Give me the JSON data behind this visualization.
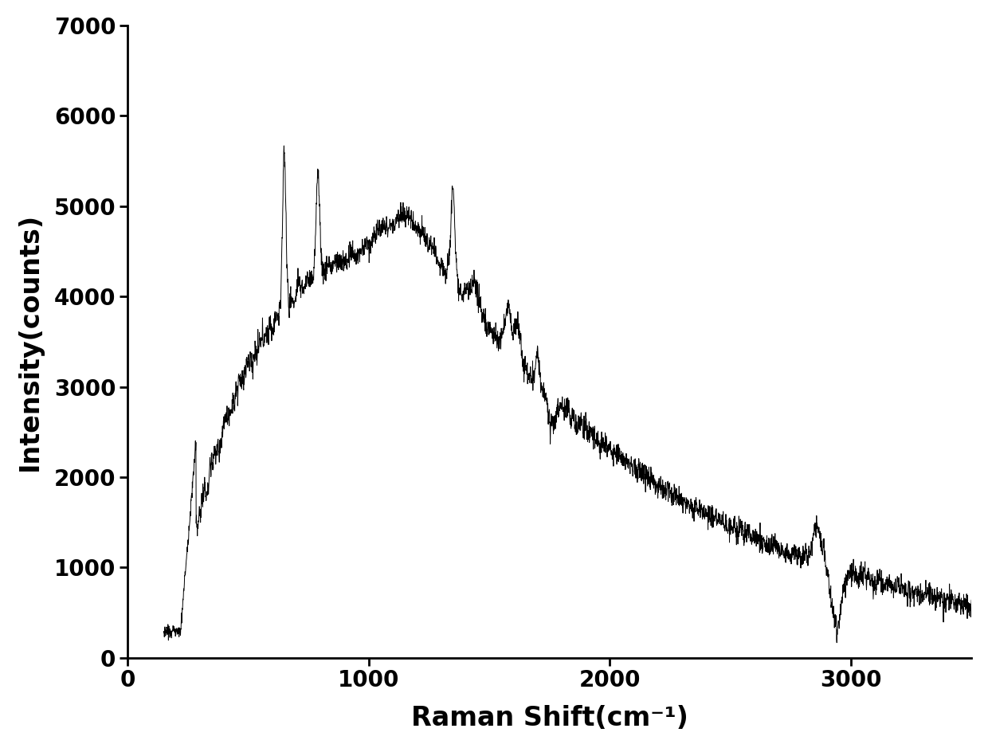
{
  "xlabel": "Raman Shift(cm⁻¹)",
  "ylabel": "Intensity(counts)",
  "xlim": [
    0,
    3500
  ],
  "ylim": [
    0,
    7000
  ],
  "xticks": [
    0,
    1000,
    2000,
    3000
  ],
  "yticks": [
    0,
    1000,
    2000,
    3000,
    4000,
    5000,
    6000,
    7000
  ],
  "line_color": "#000000",
  "line_width": 0.7,
  "background_color": "#ffffff",
  "label_fontsize": 24,
  "tick_fontsize": 20,
  "spine_linewidth": 2.0
}
